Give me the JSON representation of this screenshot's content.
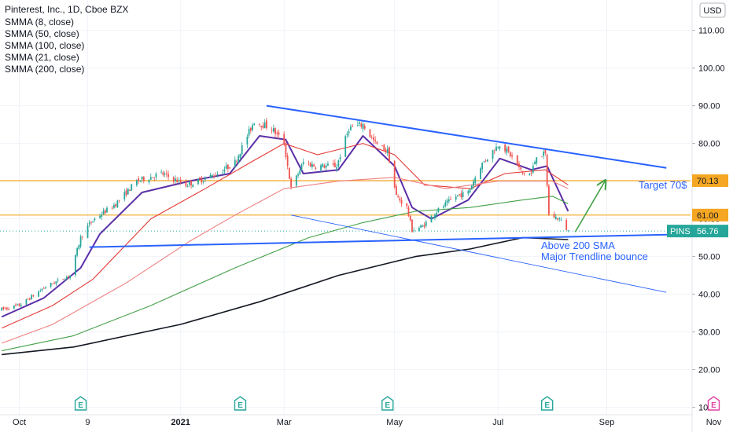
{
  "header": {
    "title": "Pinterest, Inc., 1D, Cboe BZX",
    "currency": "USD"
  },
  "legend": [
    "SMMA (8, close)",
    "SMMA (50, close)",
    "SMMA (100, close)",
    "SMMA (21, close)",
    "SMMA (200, close)"
  ],
  "colors": {
    "up": "#26a69a",
    "down": "#ef5350",
    "smma8": "#5b2fa8",
    "smma21": "#e53935",
    "smma50": "#f08080",
    "smma100": "#43a047",
    "smma200": "#131722",
    "trendline": "#2962ff",
    "horizontal": "#f5a623",
    "arrow": "#43a047",
    "pins_tag": "#26a69a"
  },
  "annotations": {
    "target": "Target 70$",
    "note_line1": "Above 200 SMA",
    "note_line2": "Major Trendline bounce"
  },
  "price_tags": [
    {
      "label": "70.13",
      "value": 70.13,
      "style": "orange"
    },
    {
      "label": "61.00",
      "value": 61.0,
      "style": "orange"
    },
    {
      "label": "56.76",
      "value": 56.76,
      "style": "teal",
      "symbol": "PINS"
    }
  ],
  "earnings_markers": [
    {
      "label": "E",
      "date": "2020-11-05",
      "future": false
    },
    {
      "label": "E",
      "date": "2021-02-04",
      "future": false
    },
    {
      "label": "E",
      "date": "2021-04-29",
      "future": false
    },
    {
      "label": "E",
      "date": "2021-07-29",
      "future": false
    },
    {
      "label": "E",
      "date": "2021-11-01",
      "future": true
    }
  ],
  "chart_data": {
    "type": "candlestick",
    "x_axis": {
      "type": "date",
      "range": [
        "2020-09-20",
        "2021-11-12"
      ],
      "tick_labels": [
        {
          "label": "Oct",
          "date": "2020-10-01"
        },
        {
          "label": "9",
          "date": "2020-11-09"
        },
        {
          "label": "2021",
          "date": "2021-01-01"
        },
        {
          "label": "Mar",
          "date": "2021-03-01"
        },
        {
          "label": "May",
          "date": "2021-05-03"
        },
        {
          "label": "Jul",
          "date": "2021-07-01"
        },
        {
          "label": "Sep",
          "date": "2021-09-01"
        },
        {
          "label": "Nov",
          "date": "2021-11-01"
        }
      ]
    },
    "y_axis": {
      "range": [
        7,
        117
      ],
      "ticks": [
        "10.00",
        "20.00",
        "30.00",
        "40.00",
        "50.00",
        "60.00",
        "70.00",
        "80.00",
        "90.00",
        "100.00",
        "110.00"
      ]
    },
    "price_path": [
      [
        "2020-09-21",
        36
      ],
      [
        "2020-10-01",
        37
      ],
      [
        "2020-10-16",
        42
      ],
      [
        "2020-10-30",
        45
      ],
      [
        "2020-11-05",
        55
      ],
      [
        "2020-11-09",
        58
      ],
      [
        "2020-11-13",
        60
      ],
      [
        "2020-11-25",
        64
      ],
      [
        "2020-12-07",
        70
      ],
      [
        "2020-12-21",
        72
      ],
      [
        "2021-01-04",
        69
      ],
      [
        "2021-01-11",
        70
      ],
      [
        "2021-01-22",
        72
      ],
      [
        "2021-02-01",
        75
      ],
      [
        "2021-02-12",
        86
      ],
      [
        "2021-02-22",
        84
      ],
      [
        "2021-03-01",
        80
      ],
      [
        "2021-03-05",
        68
      ],
      [
        "2021-03-12",
        75
      ],
      [
        "2021-03-19",
        74
      ],
      [
        "2021-03-31",
        74
      ],
      [
        "2021-04-07",
        84
      ],
      [
        "2021-04-15",
        85
      ],
      [
        "2021-04-22",
        80
      ],
      [
        "2021-04-29",
        78
      ],
      [
        "2021-05-04",
        66
      ],
      [
        "2021-05-10",
        63
      ],
      [
        "2021-05-13",
        57
      ],
      [
        "2021-05-19",
        58
      ],
      [
        "2021-05-27",
        62
      ],
      [
        "2021-06-07",
        66
      ],
      [
        "2021-06-14",
        67
      ],
      [
        "2021-06-21",
        74
      ],
      [
        "2021-06-28",
        78
      ],
      [
        "2021-07-02",
        80
      ],
      [
        "2021-07-08",
        77
      ],
      [
        "2021-07-15",
        72
      ],
      [
        "2021-07-20",
        72
      ],
      [
        "2021-07-23",
        77
      ],
      [
        "2021-07-28",
        77
      ],
      [
        "2021-07-30",
        61
      ],
      [
        "2021-08-05",
        60
      ],
      [
        "2021-08-10",
        56.76
      ]
    ],
    "series": [
      {
        "name": "SMMA (8, close)",
        "values": [
          [
            "2020-09-21",
            34
          ],
          [
            "2020-10-15",
            39
          ],
          [
            "2020-11-05",
            47
          ],
          [
            "2020-11-16",
            56
          ],
          [
            "2020-12-10",
            67
          ],
          [
            "2021-01-06",
            70
          ],
          [
            "2021-01-29",
            72
          ],
          [
            "2021-02-15",
            82
          ],
          [
            "2021-03-02",
            81
          ],
          [
            "2021-03-12",
            72
          ],
          [
            "2021-04-01",
            73
          ],
          [
            "2021-04-15",
            82
          ],
          [
            "2021-05-03",
            74
          ],
          [
            "2021-05-13",
            63
          ],
          [
            "2021-05-24",
            60
          ],
          [
            "2021-06-14",
            65
          ],
          [
            "2021-07-02",
            76
          ],
          [
            "2021-07-20",
            73
          ],
          [
            "2021-07-29",
            74
          ],
          [
            "2021-08-10",
            62
          ]
        ]
      },
      {
        "name": "SMMA (21, close)",
        "values": [
          [
            "2020-09-21",
            31
          ],
          [
            "2020-10-20",
            37
          ],
          [
            "2020-11-12",
            44
          ],
          [
            "2020-12-15",
            60
          ],
          [
            "2021-01-15",
            68
          ],
          [
            "2021-02-10",
            75
          ],
          [
            "2021-03-01",
            80
          ],
          [
            "2021-03-20",
            77
          ],
          [
            "2021-04-15",
            80
          ],
          [
            "2021-05-03",
            77
          ],
          [
            "2021-05-20",
            69
          ],
          [
            "2021-06-15",
            68
          ],
          [
            "2021-07-05",
            72
          ],
          [
            "2021-07-28",
            73
          ],
          [
            "2021-08-10",
            69
          ]
        ]
      },
      {
        "name": "SMMA (50, close)",
        "values": [
          [
            "2020-09-21",
            27
          ],
          [
            "2020-10-20",
            32
          ],
          [
            "2020-12-01",
            43
          ],
          [
            "2021-01-06",
            54
          ],
          [
            "2021-02-01",
            61
          ],
          [
            "2021-03-01",
            68
          ],
          [
            "2021-04-01",
            70
          ],
          [
            "2021-05-03",
            71
          ],
          [
            "2021-06-01",
            68
          ],
          [
            "2021-07-01",
            70
          ],
          [
            "2021-08-01",
            70
          ],
          [
            "2021-08-10",
            68
          ]
        ]
      },
      {
        "name": "SMMA (100, close)",
        "values": [
          [
            "2020-09-21",
            25
          ],
          [
            "2020-11-01",
            29
          ],
          [
            "2020-12-15",
            37
          ],
          [
            "2021-02-01",
            47
          ],
          [
            "2021-03-15",
            55
          ],
          [
            "2021-04-15",
            59
          ],
          [
            "2021-05-15",
            62
          ],
          [
            "2021-06-15",
            63
          ],
          [
            "2021-07-15",
            65
          ],
          [
            "2021-08-01",
            66
          ],
          [
            "2021-08-10",
            64
          ]
        ]
      },
      {
        "name": "SMMA (200, close)",
        "values": [
          [
            "2020-09-21",
            24
          ],
          [
            "2020-11-01",
            26
          ],
          [
            "2021-01-01",
            32
          ],
          [
            "2021-02-15",
            38
          ],
          [
            "2021-04-01",
            45
          ],
          [
            "2021-05-15",
            50
          ],
          [
            "2021-06-15",
            52
          ],
          [
            "2021-07-15",
            55
          ],
          [
            "2021-08-10",
            54.5
          ]
        ]
      }
    ],
    "drawings": [
      {
        "name": "descending-trendline",
        "kind": "trendline",
        "from": [
          "2021-02-19",
          90
        ],
        "to": [
          "2021-10-05",
          73.5
        ]
      },
      {
        "name": "support-trendline",
        "kind": "trendline",
        "from": [
          "2020-11-10",
          52.5
        ],
        "to": [
          "2021-10-26",
          56
        ]
      },
      {
        "name": "fan-line",
        "kind": "thin-trendline",
        "from": [
          "2021-03-05",
          61
        ],
        "to": [
          "2021-10-05",
          40.5
        ]
      },
      {
        "name": "resistance-7013",
        "kind": "horizontal",
        "value": 70.13
      },
      {
        "name": "support-61",
        "kind": "horizontal",
        "value": 61.0
      },
      {
        "name": "last-price-5676",
        "kind": "dotted",
        "value": 56.76
      },
      {
        "name": "target-arrow",
        "kind": "arrow",
        "from": [
          "2021-08-14",
          56.5
        ],
        "to": [
          "2021-08-31",
          70
        ]
      }
    ]
  }
}
